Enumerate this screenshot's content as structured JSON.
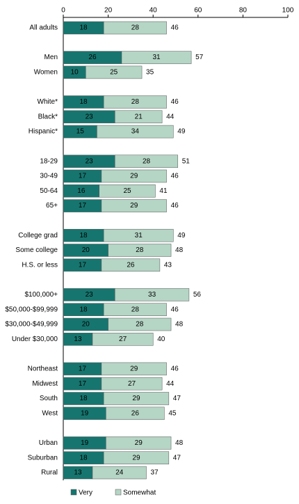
{
  "chart_data": {
    "type": "stacked-bar",
    "categories": [
      "All adults",
      null,
      "Men",
      "Women",
      null,
      "White*",
      "Black*",
      "Hispanic*",
      null,
      "18-29",
      "30-49",
      "50-64",
      "65+",
      null,
      "College grad",
      "Some college",
      "H.S. or less",
      null,
      "$100,000+",
      "$50,000-$99,999",
      "$30,000-$49,999",
      "Under $30,000",
      null,
      "Northeast",
      "Midwest",
      "South",
      "West",
      null,
      "Urban",
      "Suburban",
      "Rural"
    ],
    "series": [
      {
        "name": "Very",
        "color": "#16766f",
        "values": [
          18,
          null,
          26,
          10,
          null,
          18,
          23,
          15,
          null,
          23,
          17,
          16,
          17,
          null,
          18,
          20,
          17,
          null,
          23,
          18,
          20,
          13,
          null,
          17,
          17,
          18,
          19,
          null,
          19,
          18,
          13
        ]
      },
      {
        "name": "Somewhat",
        "color": "#b5d5c5",
        "values": [
          28,
          null,
          31,
          25,
          null,
          28,
          21,
          34,
          null,
          28,
          29,
          25,
          29,
          null,
          31,
          28,
          26,
          null,
          33,
          28,
          28,
          27,
          null,
          29,
          27,
          29,
          26,
          null,
          29,
          29,
          24
        ]
      }
    ],
    "totals": [
      46,
      null,
      57,
      35,
      null,
      46,
      44,
      49,
      null,
      51,
      46,
      41,
      46,
      null,
      49,
      48,
      43,
      null,
      56,
      46,
      48,
      40,
      null,
      46,
      44,
      47,
      45,
      null,
      48,
      47,
      37
    ],
    "xlim": [
      0,
      100
    ],
    "xticks": [
      0,
      20,
      40,
      60,
      80,
      100
    ]
  }
}
